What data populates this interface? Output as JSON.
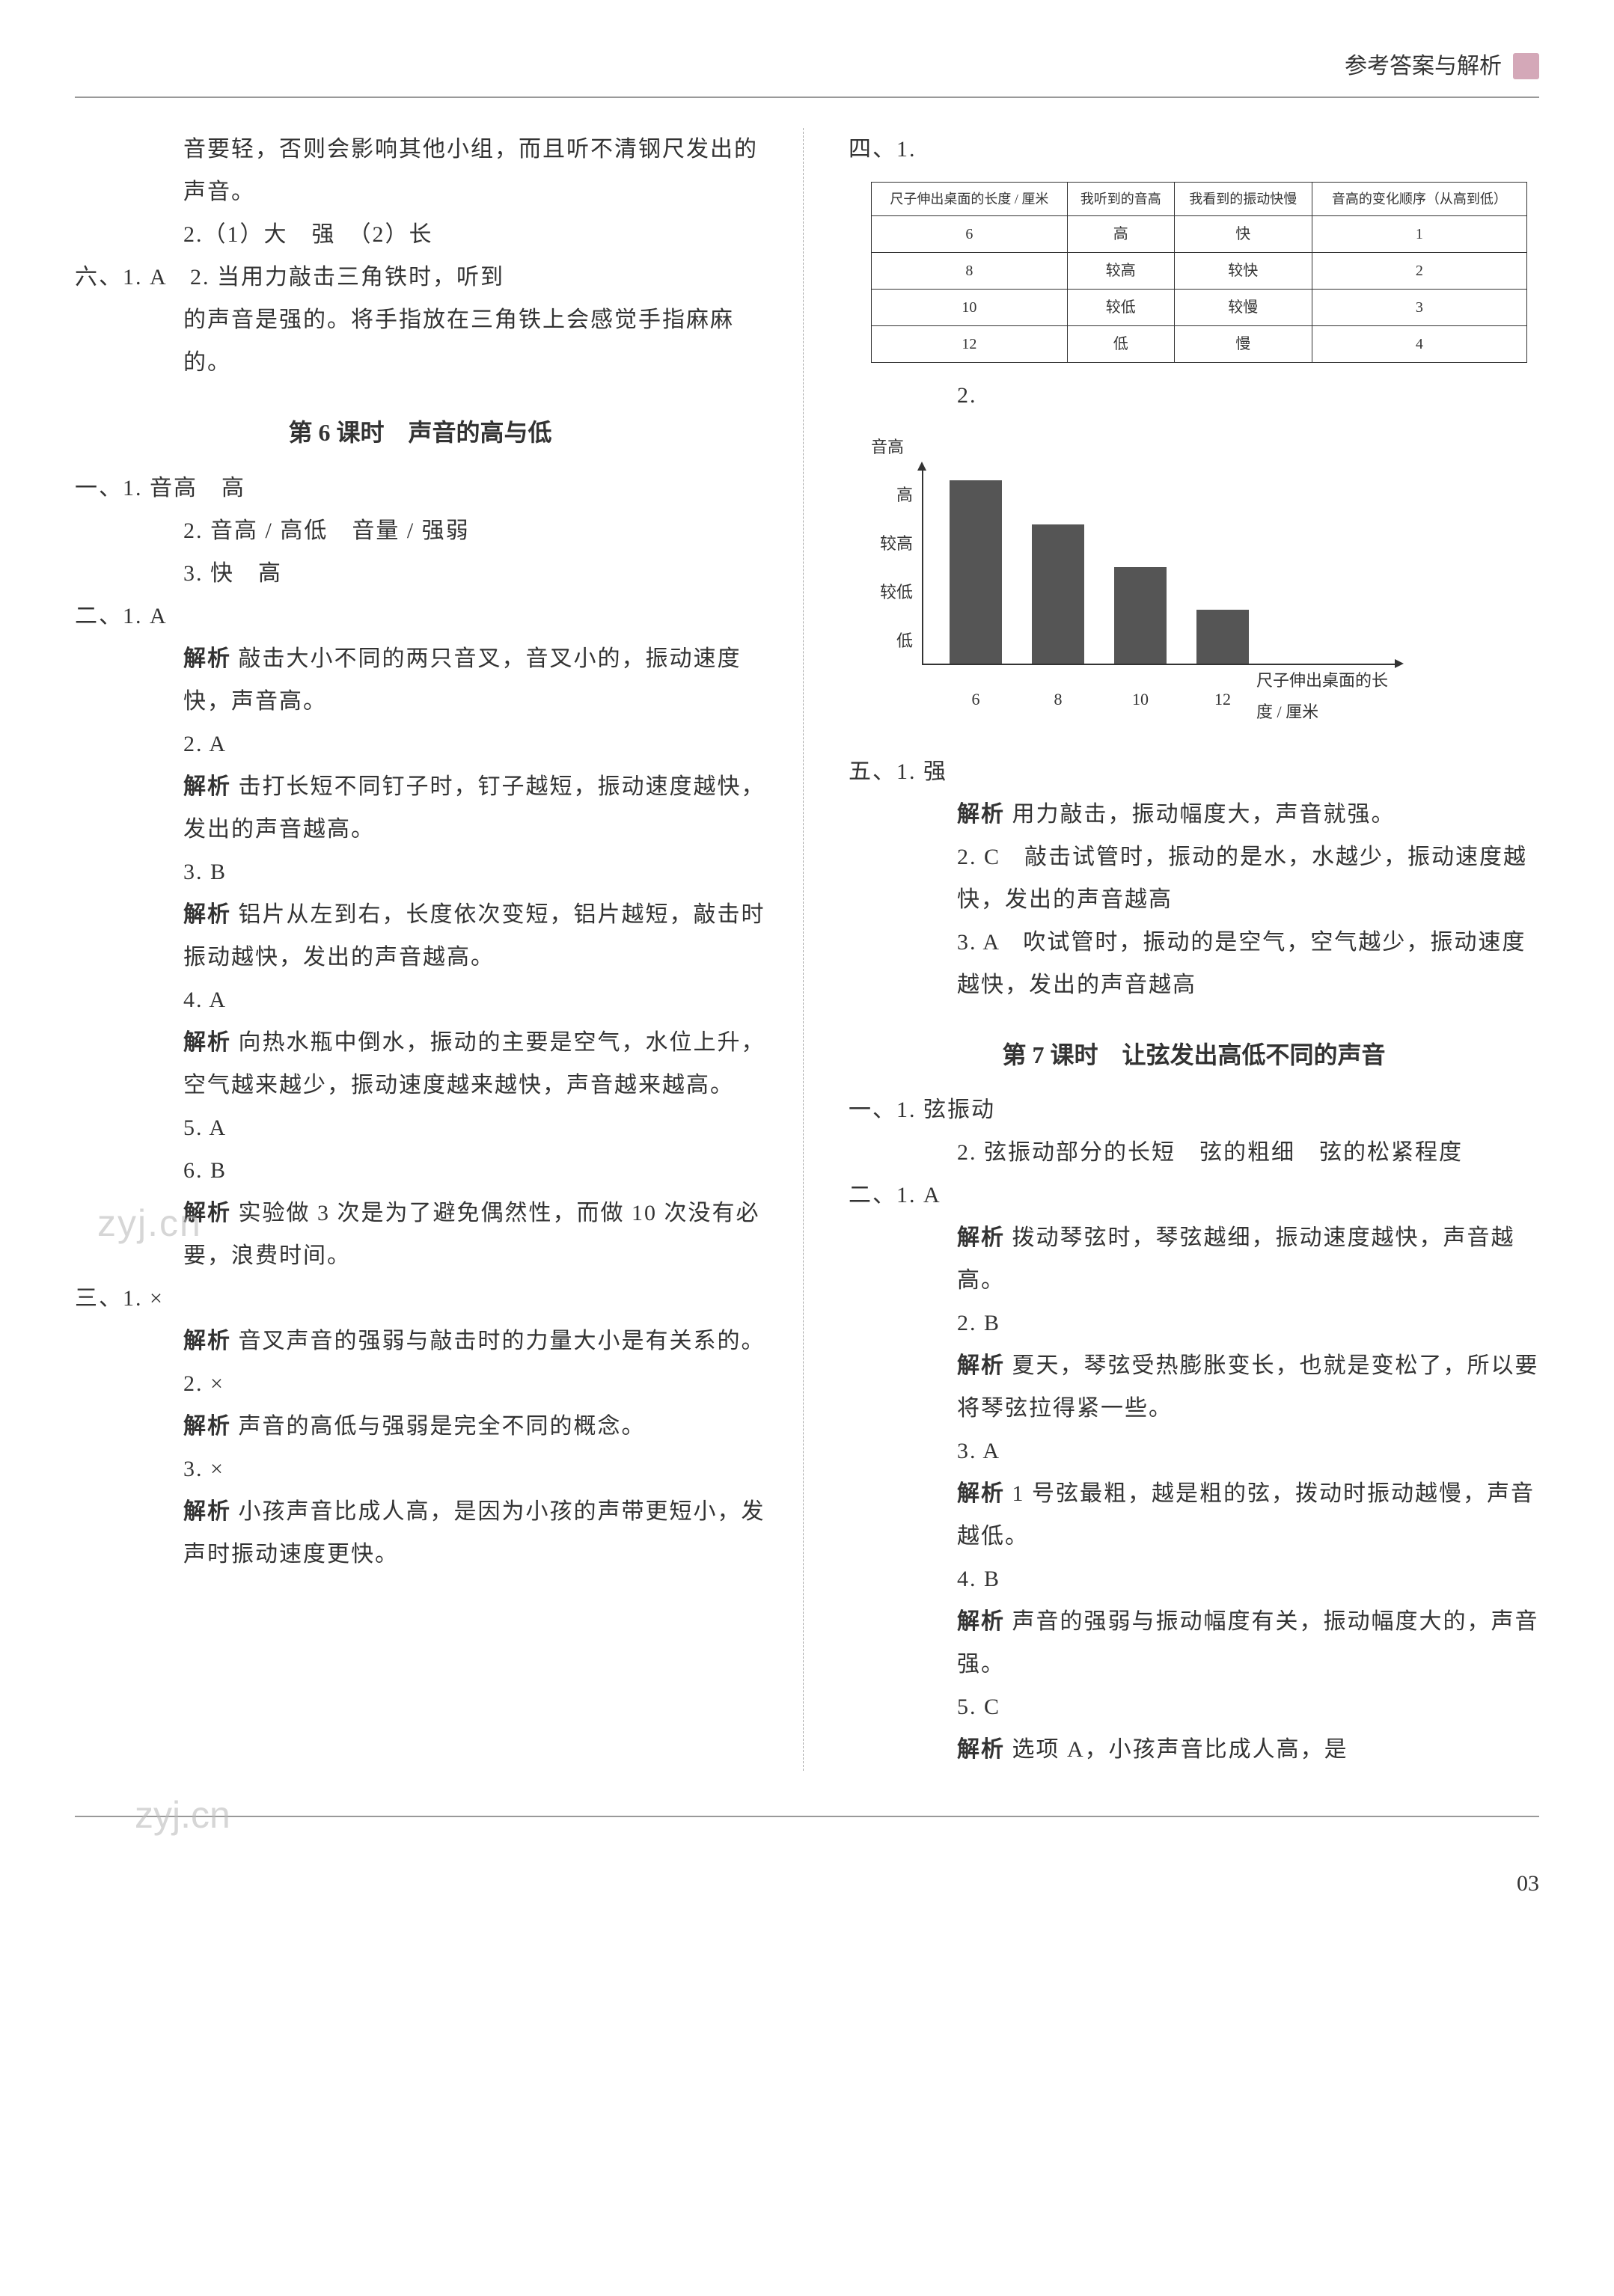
{
  "header": {
    "title": "参考答案与解析"
  },
  "left": {
    "p1": "音要轻，否则会影响其他小组，而且听不清钢尺发出的声音。",
    "p2": "2.（1）大　强　（2）长",
    "p3a": "六、1. A　2. 当用力敲击三角铁时，听到",
    "p3b": "的声音是强的。将手指放在三角铁上会感觉手指麻麻的。",
    "title6": "第 6 课时　声音的高与低",
    "l6_1": "一、1. 音高　高",
    "l6_2": "2. 音高 / 高低　音量 / 强弱",
    "l6_3": "3. 快　高",
    "l6_2_1": "二、1. A",
    "l6_2_1e": "解析 敲击大小不同的两只音叉，音叉小的，振动速度快，声音高。",
    "l6_2_2": "2. A",
    "l6_2_2e": "解析 击打长短不同钉子时，钉子越短，振动速度越快，发出的声音越高。",
    "l6_2_3": "3. B",
    "l6_2_3e": "解析 铝片从左到右，长度依次变短，铝片越短，敲击时振动越快，发出的声音越高。",
    "l6_2_4": "4. A",
    "l6_2_4e": "解析 向热水瓶中倒水，振动的主要是空气，水位上升，空气越来越少，振动速度越来越快，声音越来越高。",
    "l6_2_5": "5. A",
    "l6_2_6": "6. B",
    "l6_2_6e": "解析 实验做 3 次是为了避免偶然性，而做 10 次没有必要，浪费时间。",
    "l6_3_1": "三、1. ×",
    "l6_3_1e": "解析 音叉声音的强弱与敲击时的力量大小是有关系的。",
    "l6_3_2": "2. ×",
    "l6_3_2e": "解析 声音的高低与强弱是完全不同的概念。",
    "l6_3_3": "3. ×",
    "l6_3_3e": "解析 小孩声音比成人高，是因为小孩的声带更短小，发声时振动速度更快。"
  },
  "right": {
    "r4": "四、1.",
    "table": {
      "headers": [
        "尺子伸出桌面的长度 / 厘米",
        "我听到的音高",
        "我看到的振动快慢",
        "音高的变化顺序（从高到低）"
      ],
      "rows": [
        [
          "6",
          "高",
          "快",
          "1"
        ],
        [
          "8",
          "较高",
          "较快",
          "2"
        ],
        [
          "10",
          "较低",
          "较慢",
          "3"
        ],
        [
          "12",
          "低",
          "慢",
          "4"
        ]
      ]
    },
    "r4_2": "2.",
    "chart": {
      "ylabel": "音高",
      "yticks": [
        "高",
        "较高",
        "较低",
        "低"
      ],
      "xticks": [
        "6",
        "8",
        "10",
        "12"
      ],
      "xlabel": "尺子伸出桌面的长度 / 厘米",
      "bar_heights_pct": [
        95,
        72,
        50,
        28
      ],
      "bar_color": "#555555",
      "background": "#ffffff"
    },
    "r5_1": "五、1. 强",
    "r5_1e": "解析 用力敲击，振动幅度大，声音就强。",
    "r5_2": "2. C　敲击试管时，振动的是水，水越少，振动速度越快，发出的声音越高",
    "r5_3": "3. A　吹试管时，振动的是空气，空气越少，振动速度越快，发出的声音越高",
    "title7": "第 7 课时　让弦发出高低不同的声音",
    "l7_1_1": "一、1. 弦振动",
    "l7_1_2": "2. 弦振动部分的长短　弦的粗细　弦的松紧程度",
    "l7_2_1": "二、1. A",
    "l7_2_1e": "解析 拨动琴弦时，琴弦越细，振动速度越快，声音越高。",
    "l7_2_2": "2. B",
    "l7_2_2e": "解析 夏天，琴弦受热膨胀变长，也就是变松了，所以要将琴弦拉得紧一些。",
    "l7_2_3": "3. A",
    "l7_2_3e": "解析 1 号弦最粗，越是粗的弦，拨动时振动越慢，声音越低。",
    "l7_2_4": "4. B",
    "l7_2_4e": "解析 声音的强弱与振动幅度有关，振动幅度大的，声音强。",
    "l7_2_5": "5. C",
    "l7_2_5e": "解析 选项 A，小孩声音比成人高，是"
  },
  "pageNum": "03",
  "wm1": "zyj.cn",
  "wm2": "zyj.cn"
}
